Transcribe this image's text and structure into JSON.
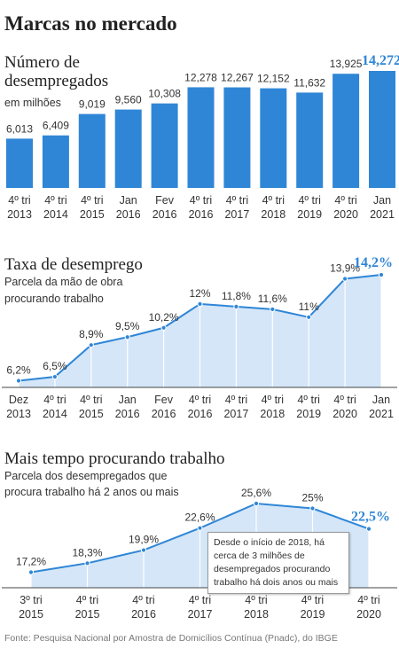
{
  "main_title": "Marcas no mercado",
  "source": "Fonte: Pesquisa Nacional por Amostra de Domicílios Contínua (Pnadc), do IBGE",
  "colors": {
    "bar": "#2f86d6",
    "line": "#2f86d6",
    "area": "#d4e6f8",
    "highlight": "#2f86d6"
  },
  "chart_data": [
    {
      "type": "bar",
      "title_line1": "Número de",
      "title_line2": "desempregados",
      "subtitle": "em milhões",
      "categories": [
        [
          "4º tri",
          "2013"
        ],
        [
          "4º tri",
          "2014"
        ],
        [
          "4º tri",
          "2015"
        ],
        [
          "Jan",
          "2016"
        ],
        [
          "Fev",
          "2016"
        ],
        [
          "4º tri",
          "2016"
        ],
        [
          "4º tri",
          "2017"
        ],
        [
          "4º tri",
          "2018"
        ],
        [
          "4º tri",
          "2019"
        ],
        [
          "4º tri",
          "2020"
        ],
        [
          "Jan",
          "2021"
        ]
      ],
      "values": [
        6.013,
        6.409,
        9.019,
        9.56,
        10.308,
        12.278,
        12.267,
        12.152,
        11.632,
        13.925,
        14.272
      ],
      "labels": [
        "6,013",
        "6,409",
        "9,019",
        "9,560",
        "10,308",
        "12,278",
        "12,267",
        "12,152",
        "11,632",
        "13,925",
        "14,272"
      ],
      "highlight_index": 10,
      "ylim": [
        0,
        14.272
      ]
    },
    {
      "type": "area",
      "title": "Taxa de desemprego",
      "subtitle_line1": "Parcela da mão de obra",
      "subtitle_line2": "procurando trabalho",
      "categories": [
        [
          "Dez",
          "2013"
        ],
        [
          "4º tri",
          "2014"
        ],
        [
          "4º tri",
          "2015"
        ],
        [
          "Jan",
          "2016"
        ],
        [
          "Fev",
          "2016"
        ],
        [
          "4º tri",
          "2016"
        ],
        [
          "4º tri",
          "2017"
        ],
        [
          "4º tri",
          "2018"
        ],
        [
          "4º tri",
          "2019"
        ],
        [
          "4º tri",
          "2020"
        ],
        [
          "Jan",
          "2021"
        ]
      ],
      "values": [
        6.2,
        6.5,
        8.9,
        9.5,
        10.2,
        12,
        11.8,
        11.6,
        11,
        13.9,
        14.2
      ],
      "labels": [
        "6,2%",
        "6,5%",
        "8,9%",
        "9,5%",
        "10,2%",
        "12%",
        "11,8%",
        "11,6%",
        "11%",
        "13,9%",
        "14,2%"
      ],
      "highlight_index": 10,
      "unit": "%"
    },
    {
      "type": "area",
      "title": "Mais tempo procurando trabalho",
      "subtitle_line1": "Parcela dos desempregados que",
      "subtitle_line2": "procura trabalho há 2 anos ou mais",
      "categories": [
        [
          "3º tri",
          "2015"
        ],
        [
          "4º tri",
          "2015"
        ],
        [
          "4º tri",
          "2016"
        ],
        [
          "4º tri",
          "2017"
        ],
        [
          "4º tri",
          "2018"
        ],
        [
          "4º tri",
          "2019"
        ],
        [
          "4º tri",
          "2020"
        ]
      ],
      "values": [
        17.2,
        18.3,
        19.9,
        22.6,
        25.6,
        25,
        22.5
      ],
      "labels": [
        "17,2%",
        "18,3%",
        "19,9%",
        "22,6%",
        "25,6%",
        "25%",
        "22,5%"
      ],
      "highlight_index": 6,
      "unit": "%",
      "annotation": "Desde o início de 2018, há cerca de 3 milhões de desempregados procurando trabalho há dois anos ou mais"
    }
  ]
}
